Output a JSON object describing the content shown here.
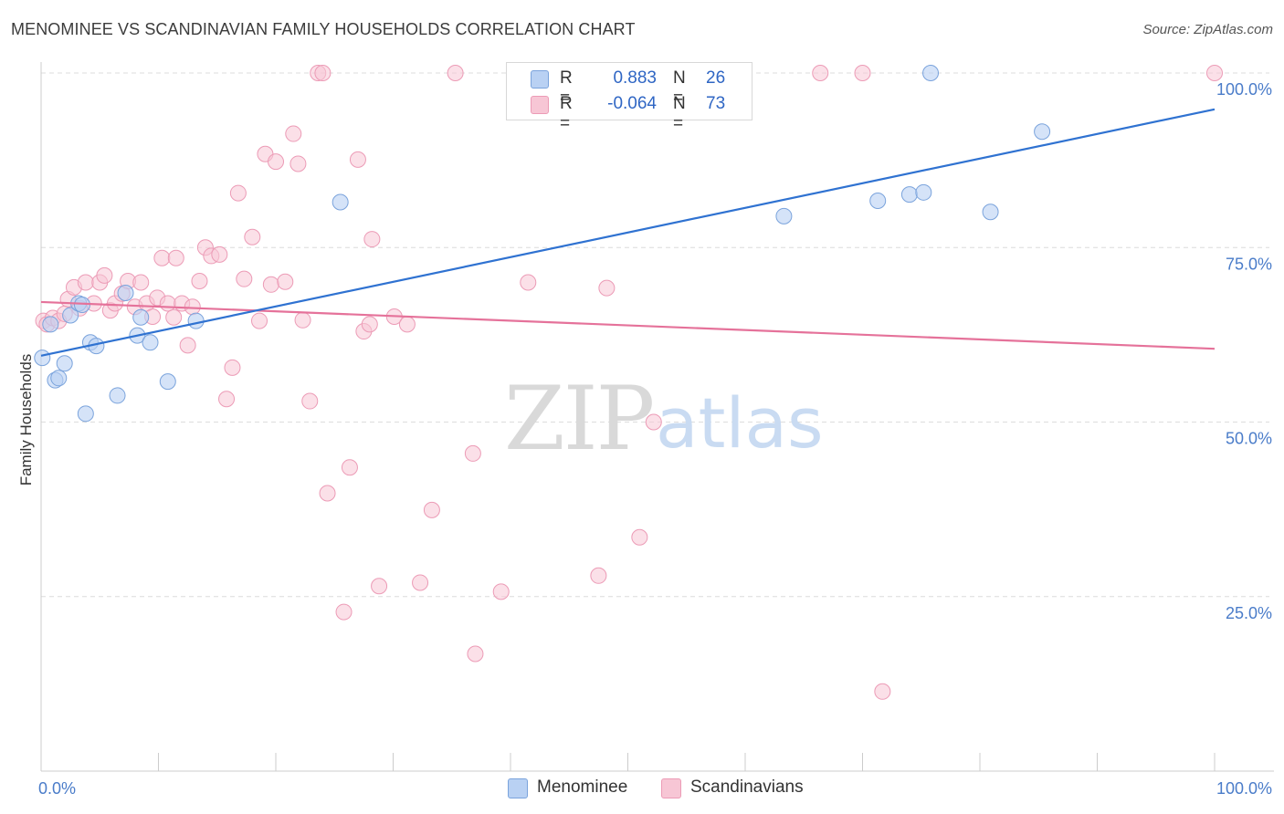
{
  "header": {
    "title": "MENOMINEE VS SCANDINAVIAN FAMILY HOUSEHOLDS CORRELATION CHART",
    "source": "Source: ZipAtlas.com"
  },
  "colors": {
    "menominee_fill": "#b9d1f3",
    "menominee_stroke": "#7aa3dc",
    "menominee_line": "#2f72d1",
    "scandinavian_fill": "#f7c6d5",
    "scandinavian_stroke": "#ec9bb6",
    "scandinavian_line": "#e5729a",
    "tick_text": "#4a7cc9",
    "grid": "#dcdcdc"
  },
  "legend": {
    "rows": [
      {
        "r_label": "R =",
        "r_value": "0.883",
        "n_label": "N =",
        "n_value": "26"
      },
      {
        "r_label": "R =",
        "r_value": "-0.064",
        "n_label": "N =",
        "n_value": "73"
      }
    ]
  },
  "bottom_legend": {
    "menominee": "Menominee",
    "scandinavians": "Scandinavians"
  },
  "watermark": {
    "zip": "ZIP",
    "atlas": "atlas"
  },
  "chart_data": {
    "type": "scatter",
    "title": "MENOMINEE VS SCANDINAVIAN FAMILY HOUSEHOLDS CORRELATION CHART",
    "xlabel": "",
    "ylabel": "Family Households",
    "xlim": [
      0,
      100
    ],
    "ylim": [
      0,
      100
    ],
    "x_tick_labels": {
      "min": "0.0%",
      "max": "100.0%"
    },
    "y_ticks": [
      {
        "value": 25,
        "label": "25.0%"
      },
      {
        "value": 50,
        "label": "50.0%"
      },
      {
        "value": 75,
        "label": "75.0%"
      },
      {
        "value": 100,
        "label": "100.0%"
      }
    ],
    "grid": true,
    "series": [
      {
        "name": "Menominee",
        "r": 0.883,
        "n": 26,
        "trend": [
          {
            "x": 0,
            "y": 59.5
          },
          {
            "x": 100,
            "y": 94.8
          }
        ],
        "points": [
          {
            "x": 0.1,
            "y": 59.2
          },
          {
            "x": 0.8,
            "y": 64.0
          },
          {
            "x": 1.2,
            "y": 56.0
          },
          {
            "x": 1.5,
            "y": 56.3
          },
          {
            "x": 2.0,
            "y": 58.4
          },
          {
            "x": 2.5,
            "y": 65.3
          },
          {
            "x": 3.2,
            "y": 67.0
          },
          {
            "x": 3.5,
            "y": 66.8
          },
          {
            "x": 3.8,
            "y": 51.2
          },
          {
            "x": 4.2,
            "y": 61.4
          },
          {
            "x": 4.7,
            "y": 60.9
          },
          {
            "x": 6.5,
            "y": 53.8
          },
          {
            "x": 7.2,
            "y": 68.5
          },
          {
            "x": 8.2,
            "y": 62.4
          },
          {
            "x": 8.5,
            "y": 65.0
          },
          {
            "x": 9.3,
            "y": 61.4
          },
          {
            "x": 10.8,
            "y": 55.8
          },
          {
            "x": 13.2,
            "y": 64.5
          },
          {
            "x": 25.5,
            "y": 81.5
          },
          {
            "x": 63.3,
            "y": 79.5
          },
          {
            "x": 71.3,
            "y": 81.7
          },
          {
            "x": 74.0,
            "y": 82.6
          },
          {
            "x": 75.2,
            "y": 82.9
          },
          {
            "x": 75.8,
            "y": 100.0
          },
          {
            "x": 80.9,
            "y": 80.1
          },
          {
            "x": 85.3,
            "y": 91.6
          }
        ]
      },
      {
        "name": "Scandinavians",
        "r": -0.064,
        "n": 73,
        "trend": [
          {
            "x": 0,
            "y": 67.2
          },
          {
            "x": 100,
            "y": 60.5
          }
        ],
        "points": [
          {
            "x": 0.2,
            "y": 64.5
          },
          {
            "x": 0.5,
            "y": 64.0
          },
          {
            "x": 1.0,
            "y": 64.9
          },
          {
            "x": 1.5,
            "y": 64.5
          },
          {
            "x": 2.0,
            "y": 65.5
          },
          {
            "x": 2.3,
            "y": 67.6
          },
          {
            "x": 2.8,
            "y": 69.3
          },
          {
            "x": 3.3,
            "y": 66.3
          },
          {
            "x": 3.8,
            "y": 70.0
          },
          {
            "x": 4.5,
            "y": 67.0
          },
          {
            "x": 5.0,
            "y": 70.0
          },
          {
            "x": 5.4,
            "y": 71.0
          },
          {
            "x": 5.9,
            "y": 66.0
          },
          {
            "x": 6.3,
            "y": 67.0
          },
          {
            "x": 6.9,
            "y": 68.4
          },
          {
            "x": 7.4,
            "y": 70.2
          },
          {
            "x": 8.0,
            "y": 66.5
          },
          {
            "x": 8.5,
            "y": 70.0
          },
          {
            "x": 9.0,
            "y": 67.0
          },
          {
            "x": 9.5,
            "y": 65.1
          },
          {
            "x": 9.9,
            "y": 67.8
          },
          {
            "x": 10.3,
            "y": 73.5
          },
          {
            "x": 10.8,
            "y": 67.0
          },
          {
            "x": 11.3,
            "y": 65.0
          },
          {
            "x": 11.5,
            "y": 73.5
          },
          {
            "x": 12.0,
            "y": 67.0
          },
          {
            "x": 12.5,
            "y": 61.0
          },
          {
            "x": 12.9,
            "y": 66.5
          },
          {
            "x": 13.5,
            "y": 70.2
          },
          {
            "x": 14.0,
            "y": 75.0
          },
          {
            "x": 14.5,
            "y": 73.8
          },
          {
            "x": 15.2,
            "y": 74.0
          },
          {
            "x": 15.8,
            "y": 53.3
          },
          {
            "x": 16.3,
            "y": 57.8
          },
          {
            "x": 16.8,
            "y": 82.8
          },
          {
            "x": 17.3,
            "y": 70.5
          },
          {
            "x": 18.0,
            "y": 76.5
          },
          {
            "x": 18.6,
            "y": 64.5
          },
          {
            "x": 19.1,
            "y": 88.4
          },
          {
            "x": 19.6,
            "y": 69.7
          },
          {
            "x": 20.0,
            "y": 87.3
          },
          {
            "x": 20.8,
            "y": 70.1
          },
          {
            "x": 21.5,
            "y": 91.3
          },
          {
            "x": 21.9,
            "y": 87.0
          },
          {
            "x": 22.3,
            "y": 64.6
          },
          {
            "x": 22.9,
            "y": 53.0
          },
          {
            "x": 23.6,
            "y": 100.0
          },
          {
            "x": 24.0,
            "y": 100.0
          },
          {
            "x": 24.4,
            "y": 39.8
          },
          {
            "x": 25.8,
            "y": 22.8
          },
          {
            "x": 26.3,
            "y": 43.5
          },
          {
            "x": 27.0,
            "y": 87.6
          },
          {
            "x": 27.5,
            "y": 63.0
          },
          {
            "x": 28.0,
            "y": 64.0
          },
          {
            "x": 28.2,
            "y": 76.2
          },
          {
            "x": 28.8,
            "y": 26.5
          },
          {
            "x": 30.1,
            "y": 65.1
          },
          {
            "x": 31.2,
            "y": 64.0
          },
          {
            "x": 32.3,
            "y": 27.0
          },
          {
            "x": 33.3,
            "y": 37.4
          },
          {
            "x": 35.3,
            "y": 100.0
          },
          {
            "x": 36.8,
            "y": 45.5
          },
          {
            "x": 37.0,
            "y": 16.8
          },
          {
            "x": 39.2,
            "y": 25.7
          },
          {
            "x": 41.5,
            "y": 70.0
          },
          {
            "x": 47.5,
            "y": 28.0
          },
          {
            "x": 48.2,
            "y": 69.2
          },
          {
            "x": 51.0,
            "y": 33.5
          },
          {
            "x": 52.2,
            "y": 50.0
          },
          {
            "x": 66.4,
            "y": 100.0
          },
          {
            "x": 70.0,
            "y": 100.0
          },
          {
            "x": 71.7,
            "y": 11.4
          },
          {
            "x": 100.0,
            "y": 100.0
          }
        ]
      }
    ]
  }
}
